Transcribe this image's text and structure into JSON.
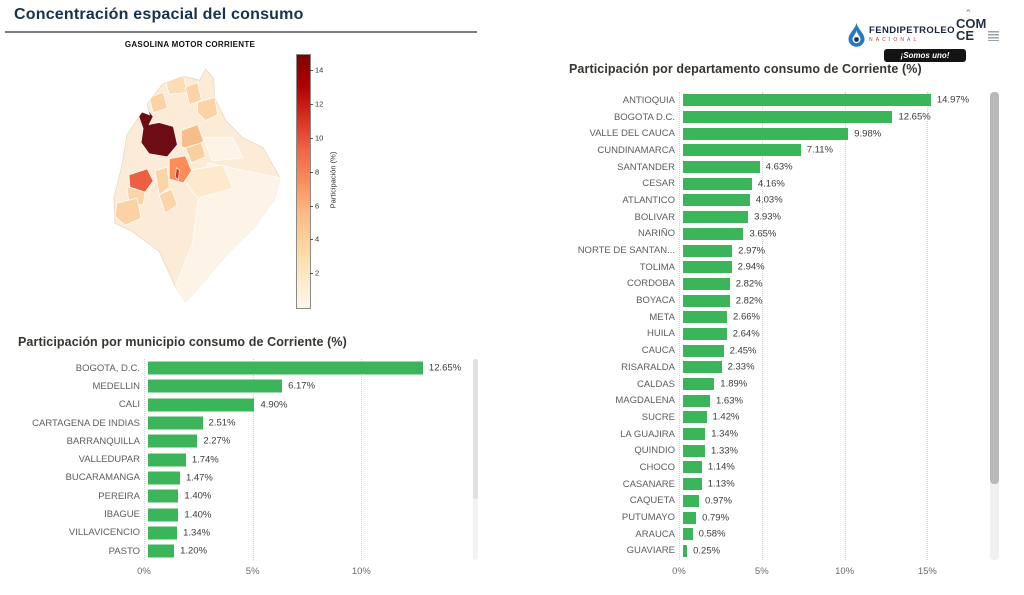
{
  "page": {
    "title": "Concentración espacial del consumo"
  },
  "header": {
    "logos": {
      "fendipetroleo": {
        "name": "FENDIPETROLEO",
        "subtitle": "NACIONAL"
      },
      "comce": {
        "line1": "COM",
        "line2": "CE"
      },
      "badge": "¡Somos uno!"
    }
  },
  "map_regions": {
    "base": "#fcecd7",
    "east_lowlands": "#fdf3e6",
    "coast_light": "#fbdcb4",
    "peach1": "#fbd3a4",
    "peach2": "#f7bd8a",
    "antioquia": "#6d0d13",
    "bogota": "#d7301f",
    "cundinamarca": "#fc8d59",
    "valle_del_cauca": "#ec5f40",
    "santander": "#f7bd8a",
    "narino": "#fbd2a4",
    "meta": "#fde9cc",
    "tolima": "#fbd4a8",
    "boyaca": "#fbd0a0",
    "stroke": "#ffffff"
  },
  "chart_data": [
    {
      "type": "bar",
      "orientation": "horizontal",
      "title": "Participación por municipio consumo de Corriente (%)",
      "categories": [
        "BOGOTA, D.C.",
        "MEDELLIN",
        "CALI",
        "CARTAGENA DE INDIAS",
        "BARRANQUILLA",
        "VALLEDUPAR",
        "BUCARAMANGA",
        "PEREIRA",
        "IBAGUE",
        "VILLAVICENCIO",
        "PASTO"
      ],
      "values": [
        12.65,
        6.17,
        4.9,
        2.51,
        2.27,
        1.74,
        1.47,
        1.4,
        1.4,
        1.34,
        1.2
      ],
      "value_labels": [
        "12.65%",
        "6.17%",
        "4.90%",
        "2.51%",
        "2.27%",
        "1.74%",
        "1.47%",
        "1.40%",
        "1.40%",
        "1.34%",
        "1.20%"
      ],
      "xticks": {
        "labels": [
          "0%",
          "5%",
          "10%"
        ],
        "values": [
          0,
          5,
          10
        ]
      },
      "xlim": [
        0,
        15
      ],
      "xlabel": "",
      "ylabel": "",
      "grid": "vertical-dotted",
      "bar_color": "#3cb45a"
    },
    {
      "type": "bar",
      "orientation": "horizontal",
      "title": "Participación por departamento consumo de Corriente (%)",
      "categories": [
        "ANTIOQUIA",
        "BOGOTA D.C.",
        "VALLE DEL CAUCA",
        "CUNDINAMARCA",
        "SANTANDER",
        "CESAR",
        "ATLANTICO",
        "BOLIVAR",
        "NARIÑO",
        "NORTE DE SANTAN...",
        "TOLIMA",
        "CORDOBA",
        "BOYACA",
        "META",
        "HUILA",
        "CAUCA",
        "RISARALDA",
        "CALDAS",
        "MAGDALENA",
        "SUCRE",
        "LA GUAJIRA",
        "QUINDIO",
        "CHOCO",
        "CASANARE",
        "CAQUETA",
        "PUTUMAYO",
        "ARAUCA",
        "GUAVIARE"
      ],
      "values": [
        14.97,
        12.65,
        9.98,
        7.11,
        4.63,
        4.16,
        4.03,
        3.93,
        3.65,
        2.97,
        2.94,
        2.82,
        2.82,
        2.66,
        2.64,
        2.45,
        2.33,
        1.89,
        1.63,
        1.42,
        1.34,
        1.33,
        1.14,
        1.13,
        0.97,
        0.79,
        0.58,
        0.25
      ],
      "value_labels": [
        "14.97%",
        "12.65%",
        "9.98%",
        "7.11%",
        "4.63%",
        "4.16%",
        "4.03%",
        "3.93%",
        "3.65%",
        "2.97%",
        "2.94%",
        "2.82%",
        "2.82%",
        "2.66%",
        "2.64%",
        "2.45%",
        "2.33%",
        "1.89%",
        "1.63%",
        "1.42%",
        "1.34%",
        "1.33%",
        "1.14%",
        "1.13%",
        "0.97%",
        "0.79%",
        "0.58%",
        "0.25%"
      ],
      "xticks": {
        "labels": [
          "0%",
          "5%",
          "10%",
          "15%"
        ],
        "values": [
          0,
          5,
          10,
          15
        ]
      },
      "xlim": [
        0,
        18.6
      ],
      "xlabel": "",
      "ylabel": "",
      "grid": "vertical-dotted",
      "bar_color": "#3cb45a"
    },
    {
      "type": "choropleth",
      "title": "GASOLINA MOTOR CORRIENTE",
      "region": "Colombia departments",
      "colorbar": {
        "label": "Participación (%)",
        "ticks": [
          2,
          4,
          6,
          8,
          10,
          12,
          14
        ],
        "min": 0,
        "max": 14.97,
        "palette_low_to_high": [
          "#fff7ec",
          "#fee8c8",
          "#fdd49e",
          "#fdbb84",
          "#fc8d59",
          "#ef6548",
          "#d7301f",
          "#b30000",
          "#7f0000"
        ]
      },
      "highlighted_values": {
        "ANTIOQUIA": 14.97,
        "BOGOTA D.C.": 12.65,
        "VALLE DEL CAUCA": 9.98,
        "CUNDINAMARCA": 7.11
      }
    }
  ]
}
